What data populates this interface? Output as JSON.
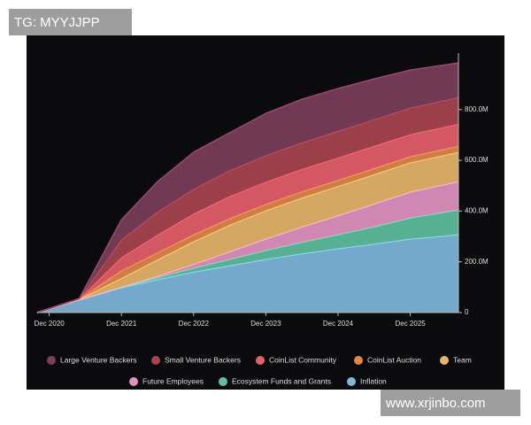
{
  "watermarks": {
    "top_left": "TG: MYYJJPP",
    "bottom_right": "www.xrjinbo.com"
  },
  "chart_data": {
    "type": "stacked-area",
    "x": [
      "2020-10",
      "2021-05",
      "2021-12",
      "2022-06",
      "2022-12",
      "2023-06",
      "2023-12",
      "2024-06",
      "2024-12",
      "2025-06",
      "2025-12",
      "2026-08"
    ],
    "xlim": [
      "2020-10",
      "2026-08"
    ],
    "xticks": [
      {
        "value": "2020-12",
        "label": "Dec 2020"
      },
      {
        "value": "2021-12",
        "label": "Dec 2021"
      },
      {
        "value": "2022-12",
        "label": "Dec 2022"
      },
      {
        "value": "2023-12",
        "label": "Dec 2023"
      },
      {
        "value": "2024-12",
        "label": "Dec 2024"
      },
      {
        "value": "2025-12",
        "label": "Dec 2025"
      }
    ],
    "ylim": [
      0,
      1000
    ],
    "yticks": [
      0,
      {
        "value": 200,
        "label": "200.0M"
      },
      {
        "value": 400,
        "label": "400.0M"
      },
      {
        "value": 600,
        "label": "600.0M"
      },
      {
        "value": 800,
        "label": "800.0M"
      }
    ],
    "series": [
      {
        "name": "Inflation",
        "color": "#7fb7dc",
        "values": [
          0,
          50,
          98,
          130,
          160,
          185,
          210,
          232,
          252,
          270,
          290,
          307
        ]
      },
      {
        "name": "Ecosystem Funds and Grants",
        "color": "#5fbf9e",
        "values": [
          0,
          0,
          2,
          8,
          15,
          25,
          35,
          45,
          55,
          68,
          83,
          98
        ]
      },
      {
        "name": "Future Employees",
        "color": "#e294c0",
        "values": [
          0,
          0,
          0,
          5,
          15,
          30,
          45,
          60,
          75,
          90,
          102,
          111
        ]
      },
      {
        "name": "Team",
        "color": "#e6b66a",
        "values": [
          0,
          2,
          35,
          65,
          90,
          105,
          112,
          115,
          116,
          116,
          116,
          116
        ]
      },
      {
        "name": "CoinList Auction",
        "color": "#df884a",
        "values": [
          0,
          1,
          30,
          28,
          27,
          26,
          25,
          25,
          24,
          24,
          24,
          24
        ]
      },
      {
        "name": "CoinList Community",
        "color": "#e6606a",
        "values": [
          0,
          1,
          52,
          70,
          82,
          87,
          88,
          88,
          88,
          88,
          87,
          87
        ]
      },
      {
        "name": "Small Venture Backers",
        "color": "#a8444f",
        "values": [
          0,
          1,
          70,
          90,
          98,
          102,
          104,
          105,
          105,
          105,
          105,
          105
        ]
      },
      {
        "name": "Large Venture Backers",
        "color": "#7c3e5a",
        "values": [
          0,
          0,
          79,
          120,
          145,
          149,
          166,
          171,
          168,
          160,
          149,
          136
        ]
      }
    ]
  }
}
